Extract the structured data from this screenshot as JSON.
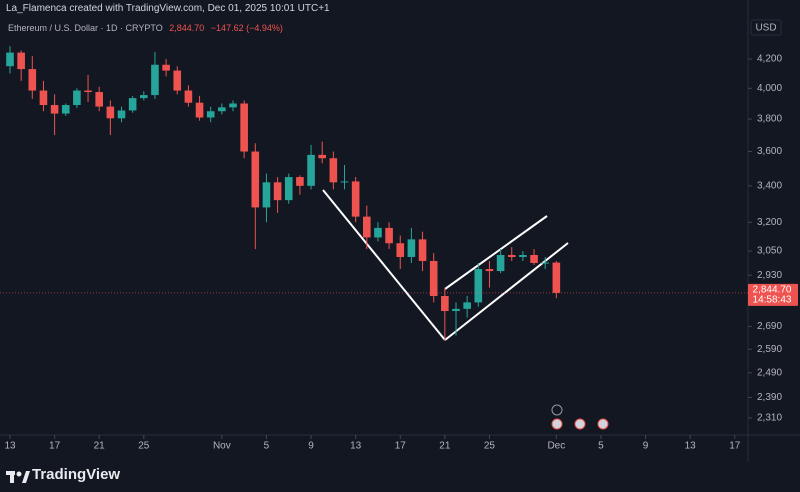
{
  "header": "La_Flamenca created with TradingView.com, Dec 01, 2025 10:01 UTC+1",
  "legend": {
    "symbol": "Ethereum / U.S. Dollar · 1D · CRYPTO",
    "price": "2,844.70",
    "change": "−147.62 (−4.94%)"
  },
  "currency": "USD",
  "countdown": "14:58:43",
  "brand": "TradingView",
  "chart_data": {
    "type": "candlestick",
    "log_scale": true,
    "up_color": "#26a69a",
    "down_color": "#ef5350",
    "last_price": 2844.7,
    "categories": [
      "13",
      null,
      null,
      null,
      "17",
      null,
      null,
      null,
      "21",
      null,
      null,
      null,
      "25",
      null,
      null,
      null,
      null,
      null,
      null,
      "Nov",
      null,
      null,
      null,
      "5",
      null,
      null,
      null,
      "9",
      null,
      null,
      null,
      "13",
      null,
      null,
      null,
      "17",
      null,
      null,
      null,
      "21",
      null,
      null,
      null,
      "25",
      null,
      null,
      null,
      null,
      null,
      "Dec",
      null,
      null,
      null,
      "5",
      null,
      null,
      null,
      "9",
      null,
      null,
      null,
      "13",
      null,
      null,
      null,
      "17"
    ],
    "open": [
      4150,
      4245,
      4130,
      3985,
      3890,
      3835,
      3890,
      3985,
      3975,
      3880,
      3805,
      3855,
      3935,
      3955,
      4160,
      4120,
      3985,
      3905,
      3810,
      3850,
      3875,
      3900,
      3600,
      3280,
      3420,
      3320,
      3450,
      3400,
      3580,
      3560,
      3420,
      3425,
      3230,
      3120,
      3170,
      3090,
      3020,
      3110,
      3000,
      2830,
      2760,
      2770,
      2800,
      2960,
      2950,
      3030,
      3020,
      3030,
      2990,
      2992,
      null,
      null,
      null,
      null,
      null,
      null,
      null,
      null,
      null,
      null,
      null,
      null,
      null,
      null,
      null,
      null
    ],
    "high": [
      4290,
      4260,
      4220,
      4050,
      3960,
      3900,
      4000,
      4090,
      4010,
      3920,
      3880,
      3950,
      3980,
      4250,
      4200,
      4150,
      4020,
      3950,
      3880,
      3900,
      3920,
      3920,
      3650,
      3470,
      3450,
      3470,
      3460,
      3640,
      3660,
      3600,
      3520,
      3450,
      3290,
      3200,
      3200,
      3130,
      3170,
      3150,
      3040,
      2870,
      2800,
      2830,
      2990,
      3000,
      3060,
      3070,
      3050,
      3060,
      3020,
      3000,
      null,
      null,
      null,
      null,
      null,
      null,
      null,
      null,
      null,
      null,
      null,
      null,
      null,
      null,
      null,
      null
    ],
    "low": [
      4100,
      4050,
      3930,
      3850,
      3700,
      3820,
      3870,
      3910,
      3850,
      3700,
      3780,
      3840,
      3920,
      3930,
      4080,
      3960,
      3880,
      3790,
      3780,
      3830,
      3850,
      3560,
      3060,
      3200,
      3250,
      3300,
      3350,
      3380,
      3530,
      3380,
      3380,
      3200,
      3060,
      3100,
      3060,
      2960,
      2990,
      2950,
      2800,
      2630,
      2650,
      2730,
      2780,
      2870,
      2940,
      3000,
      3000,
      2980,
      2960,
      2820,
      null,
      null,
      null,
      null,
      null,
      null,
      null,
      null,
      null,
      null,
      null,
      null,
      null,
      null,
      null,
      null
    ],
    "close": [
      4245,
      4130,
      3985,
      3890,
      3835,
      3890,
      3985,
      3975,
      3880,
      3805,
      3855,
      3935,
      3955,
      4160,
      4120,
      3985,
      3905,
      3810,
      3850,
      3875,
      3900,
      3600,
      3280,
      3420,
      3320,
      3450,
      3400,
      3580,
      3560,
      3420,
      3425,
      3230,
      3120,
      3170,
      3090,
      3020,
      3110,
      3000,
      2830,
      2760,
      2770,
      2800,
      2960,
      2950,
      3030,
      3020,
      3030,
      2990,
      2992,
      2844.7,
      null,
      null,
      null,
      null,
      null,
      null,
      null,
      null,
      null,
      null,
      null,
      null,
      null,
      null,
      null,
      null
    ],
    "ylim": [
      2245,
      4527
    ],
    "yticks": [
      {
        "value": 4200,
        "label": "4,200"
      },
      {
        "value": 4000,
        "label": "4,000"
      },
      {
        "value": 3800,
        "label": "3,800"
      },
      {
        "value": 3600,
        "label": "3,600"
      },
      {
        "value": 3400,
        "label": "3,400"
      },
      {
        "value": 3200,
        "label": "3,200"
      },
      {
        "value": 3050,
        "label": "3,050"
      },
      {
        "value": 2930,
        "label": "2,930"
      },
      {
        "value": 2690,
        "label": "2,690"
      },
      {
        "value": 2590,
        "label": "2,590"
      },
      {
        "value": 2490,
        "label": "2,490"
      },
      {
        "value": 2390,
        "label": "2,390"
      },
      {
        "value": 2310,
        "label": "2,310"
      }
    ],
    "grid": false
  }
}
